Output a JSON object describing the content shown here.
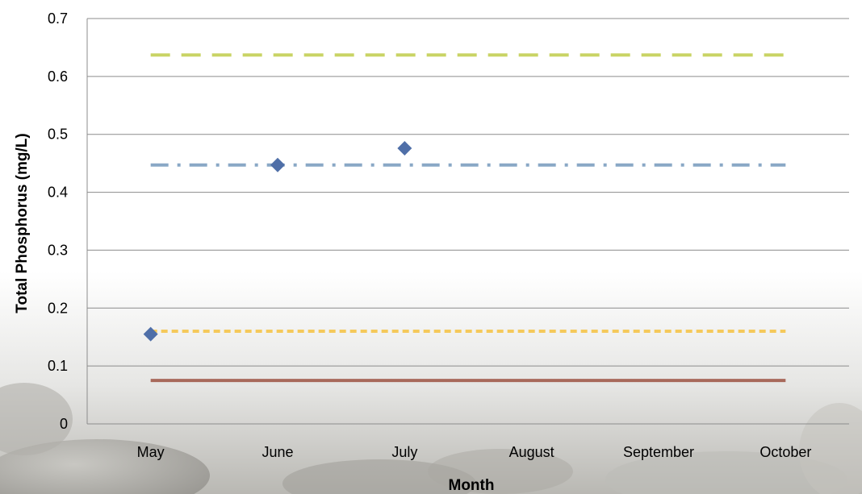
{
  "chart_data": {
    "type": "line",
    "xlabel": "Month",
    "ylabel": "Total Phosphorus (mg/L)",
    "categories": [
      "May",
      "June",
      "July",
      "August",
      "September",
      "October"
    ],
    "ylim": [
      0,
      0.7
    ],
    "yticks": [
      "0",
      "0.1",
      "0.2",
      "0.3",
      "0.4",
      "0.5",
      "0.6",
      "0.7"
    ],
    "grid": true,
    "series": [
      {
        "kind": "scatter",
        "marker": "diamond",
        "color": "#4f6fa8",
        "values": [
          0.155,
          0.447,
          0.476,
          null,
          null,
          null
        ]
      },
      {
        "kind": "line",
        "style": "dashed",
        "color": "#c9d465",
        "values": [
          0.637,
          0.637,
          0.637,
          0.637,
          0.637,
          0.637
        ]
      },
      {
        "kind": "line",
        "style": "dash-dot",
        "color": "#89a8c6",
        "values": [
          0.447,
          0.447,
          0.447,
          0.447,
          0.447,
          0.447
        ]
      },
      {
        "kind": "line",
        "style": "dotted",
        "color": "#f5c95b",
        "values": [
          0.16,
          0.16,
          0.16,
          0.16,
          0.16,
          0.16
        ]
      },
      {
        "kind": "line",
        "style": "solid",
        "color": "#a8695b",
        "values": [
          0.075,
          0.075,
          0.075,
          0.075,
          0.075,
          0.075
        ]
      }
    ]
  }
}
